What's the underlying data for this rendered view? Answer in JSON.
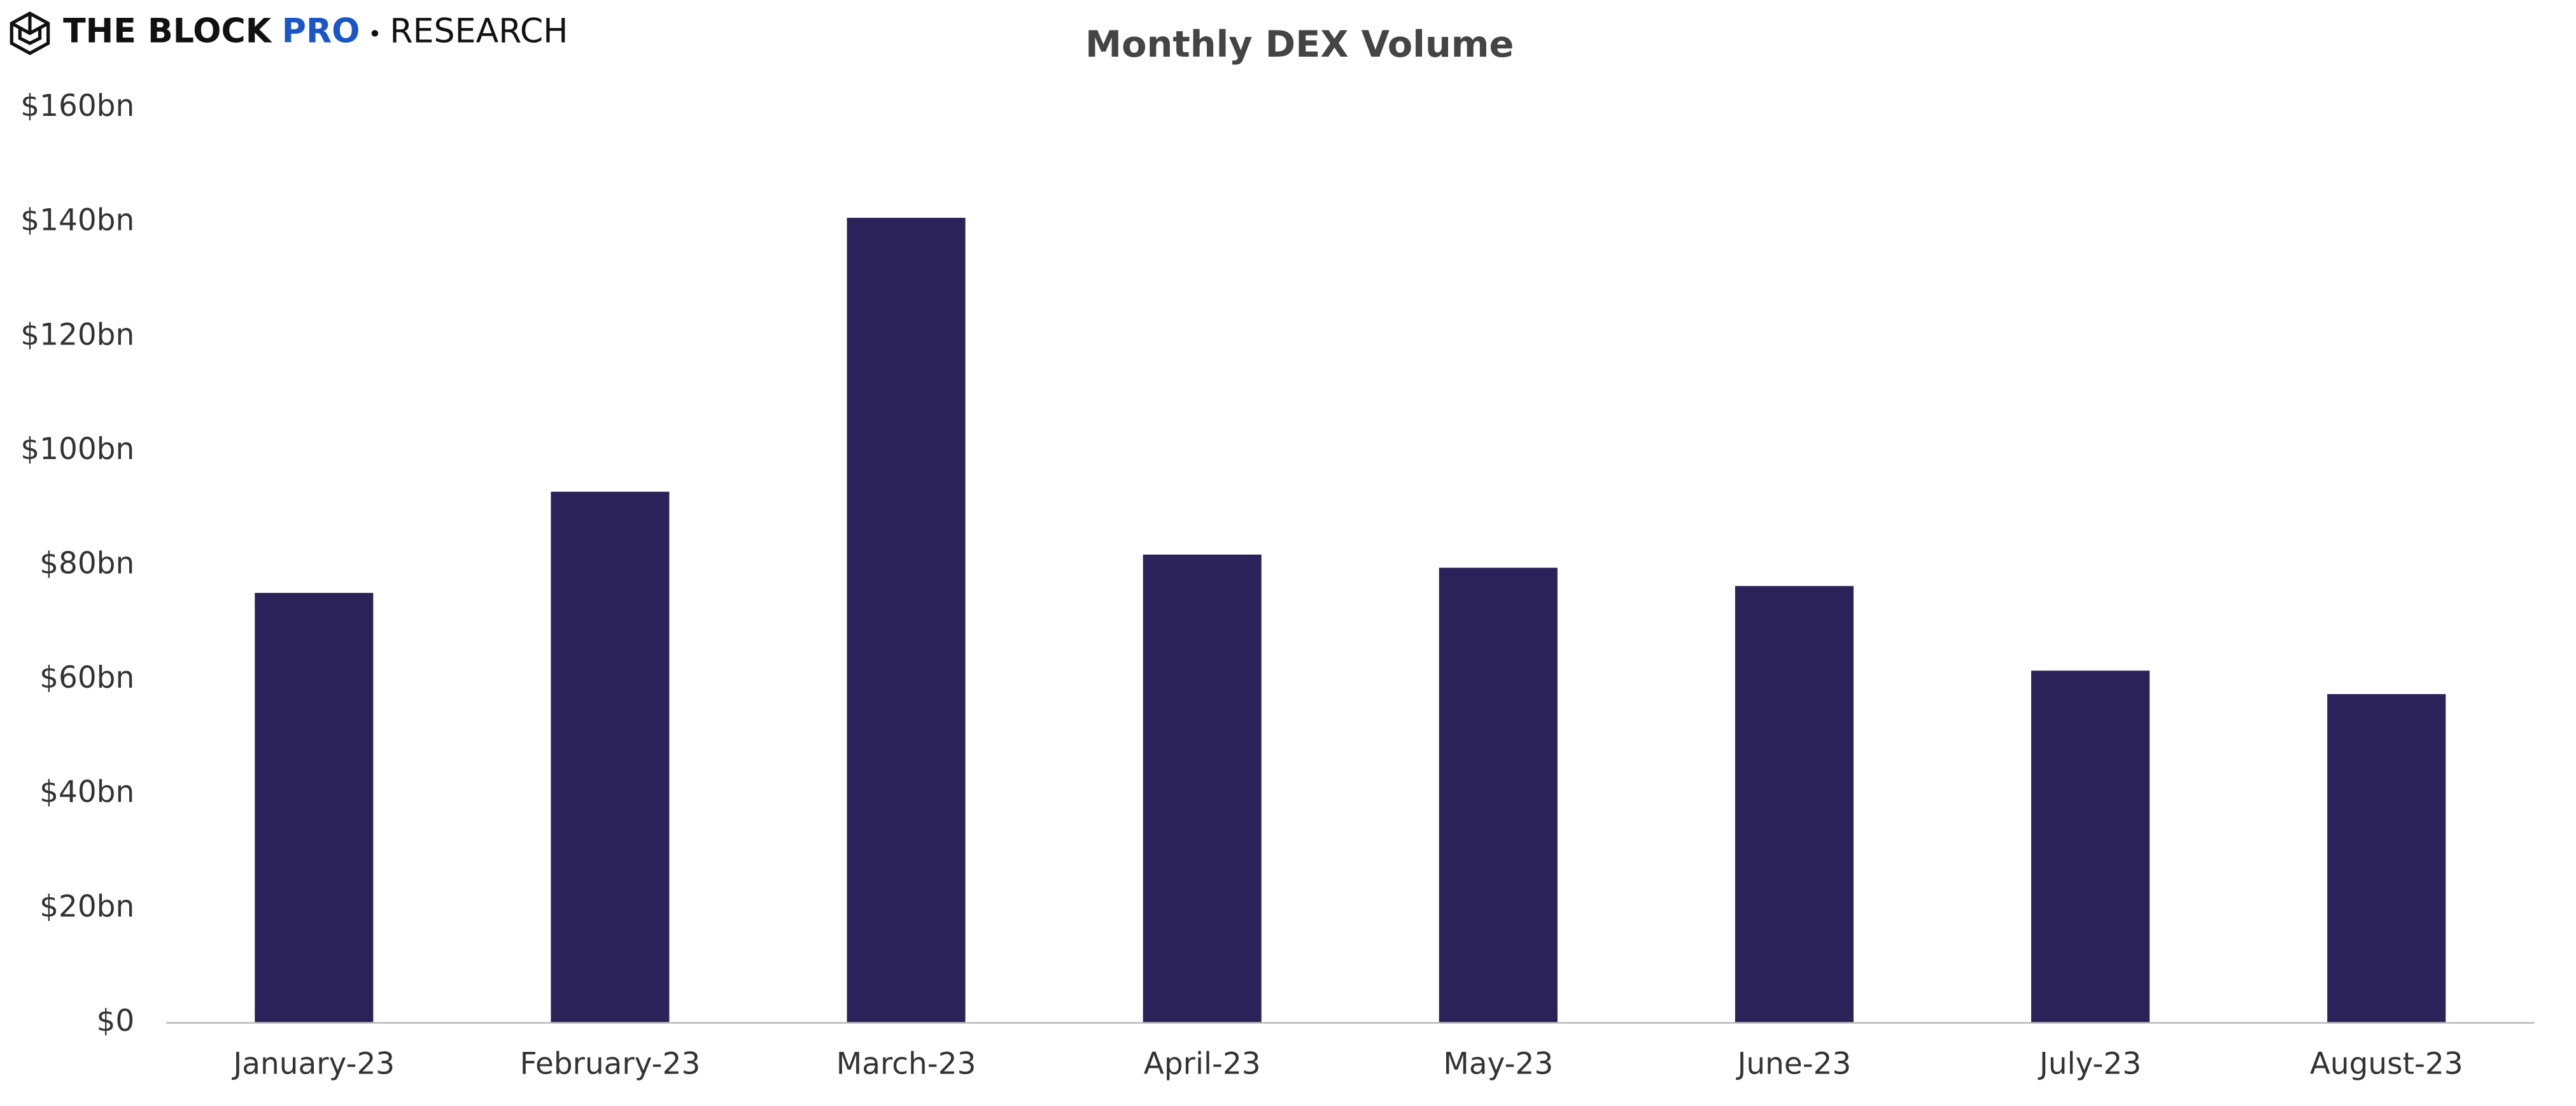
{
  "logo": {
    "name": "THE BLOCK",
    "tier": "PRO",
    "section": "RESEARCH"
  },
  "chart_data": {
    "type": "bar",
    "title": "Monthly DEX Volume",
    "categories": [
      "January-23",
      "February-23",
      "March-23",
      "April-23",
      "May-23",
      "June-23",
      "July-23",
      "August-23"
    ],
    "values": [
      75.2,
      92.9,
      140.8,
      81.9,
      79.6,
      76.4,
      61.6,
      57.5
    ],
    "color": "#2a2259",
    "ylim": [
      0,
      160
    ],
    "yticks": [
      {
        "value": 0,
        "label": "$0"
      },
      {
        "value": 20,
        "label": "$20bn"
      },
      {
        "value": 40,
        "label": "$40bn"
      },
      {
        "value": 60,
        "label": "$60bn"
      },
      {
        "value": 80,
        "label": "$80bn"
      },
      {
        "value": 100,
        "label": "$100bn"
      },
      {
        "value": 120,
        "label": "$120bn"
      },
      {
        "value": 140,
        "label": "$140bn"
      },
      {
        "value": 160,
        "label": "$160bn"
      }
    ],
    "grid": false
  }
}
